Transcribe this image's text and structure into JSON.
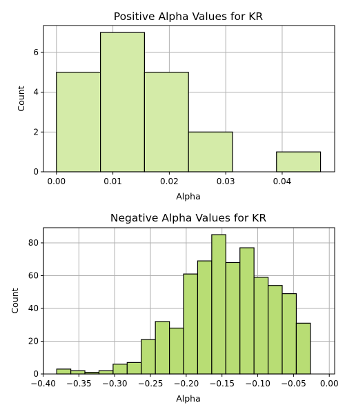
{
  "colors": {
    "positive_fill": "#d4eba8",
    "negative_fill": "#b8dd74",
    "edge": "#000000",
    "grid": "#b0b0b0"
  },
  "chart_data": [
    {
      "type": "bar",
      "title": "Positive Alpha Values for KR",
      "xlabel": "Alpha",
      "ylabel": "Count",
      "grid": true,
      "xlim": [
        -0.0023,
        0.0493
      ],
      "ylim": [
        0,
        7.35
      ],
      "xticks": [
        0.0,
        0.01,
        0.02,
        0.03,
        0.04
      ],
      "xtick_labels": [
        "0.00",
        "0.01",
        "0.02",
        "0.03",
        "0.04"
      ],
      "yticks": [
        0,
        2,
        4,
        6
      ],
      "ytick_labels": [
        "0",
        "2",
        "4",
        "6"
      ],
      "bins": [
        {
          "x0": 0.0,
          "x1": 0.0078,
          "count": 5
        },
        {
          "x0": 0.0078,
          "x1": 0.0156,
          "count": 7
        },
        {
          "x0": 0.0156,
          "x1": 0.0234,
          "count": 5
        },
        {
          "x0": 0.0234,
          "x1": 0.0312,
          "count": 2
        },
        {
          "x0": 0.0312,
          "x1": 0.039,
          "count": 0
        },
        {
          "x0": 0.039,
          "x1": 0.0468,
          "count": 1
        }
      ]
    },
    {
      "type": "bar",
      "title": "Negative Alpha Values for KR",
      "xlabel": "Alpha",
      "ylabel": "Count",
      "grid": true,
      "xlim": [
        -0.3995,
        0.0075
      ],
      "ylim": [
        0,
        89.25
      ],
      "xticks": [
        -0.4,
        -0.35,
        -0.3,
        -0.25,
        -0.2,
        -0.15,
        -0.1,
        -0.05,
        0.0
      ],
      "xtick_labels": [
        "−0.40",
        "−0.35",
        "−0.30",
        "−0.25",
        "−0.20",
        "−0.15",
        "−0.10",
        "−0.05",
        "0.00"
      ],
      "yticks": [
        0,
        20,
        40,
        60,
        80
      ],
      "ytick_labels": [
        "0",
        "20",
        "40",
        "60",
        "80"
      ],
      "bins": [
        {
          "x0": -0.381,
          "x1": -0.3613,
          "count": 3
        },
        {
          "x0": -0.3613,
          "x1": -0.3416,
          "count": 2
        },
        {
          "x0": -0.3416,
          "x1": -0.3219,
          "count": 1
        },
        {
          "x0": -0.3219,
          "x1": -0.3022,
          "count": 2
        },
        {
          "x0": -0.3022,
          "x1": -0.2825,
          "count": 6
        },
        {
          "x0": -0.2825,
          "x1": -0.2628,
          "count": 7
        },
        {
          "x0": -0.2628,
          "x1": -0.2431,
          "count": 21
        },
        {
          "x0": -0.2431,
          "x1": -0.2234,
          "count": 32
        },
        {
          "x0": -0.2234,
          "x1": -0.2037,
          "count": 28
        },
        {
          "x0": -0.2037,
          "x1": -0.184,
          "count": 61
        },
        {
          "x0": -0.184,
          "x1": -0.1643,
          "count": 69
        },
        {
          "x0": -0.1643,
          "x1": -0.1446,
          "count": 85
        },
        {
          "x0": -0.1446,
          "x1": -0.1249,
          "count": 68
        },
        {
          "x0": -0.1249,
          "x1": -0.1052,
          "count": 77
        },
        {
          "x0": -0.1052,
          "x1": -0.0855,
          "count": 59
        },
        {
          "x0": -0.0855,
          "x1": -0.0658,
          "count": 54
        },
        {
          "x0": -0.0658,
          "x1": -0.0461,
          "count": 49
        },
        {
          "x0": -0.0461,
          "x1": -0.0264,
          "count": 31
        }
      ]
    }
  ]
}
